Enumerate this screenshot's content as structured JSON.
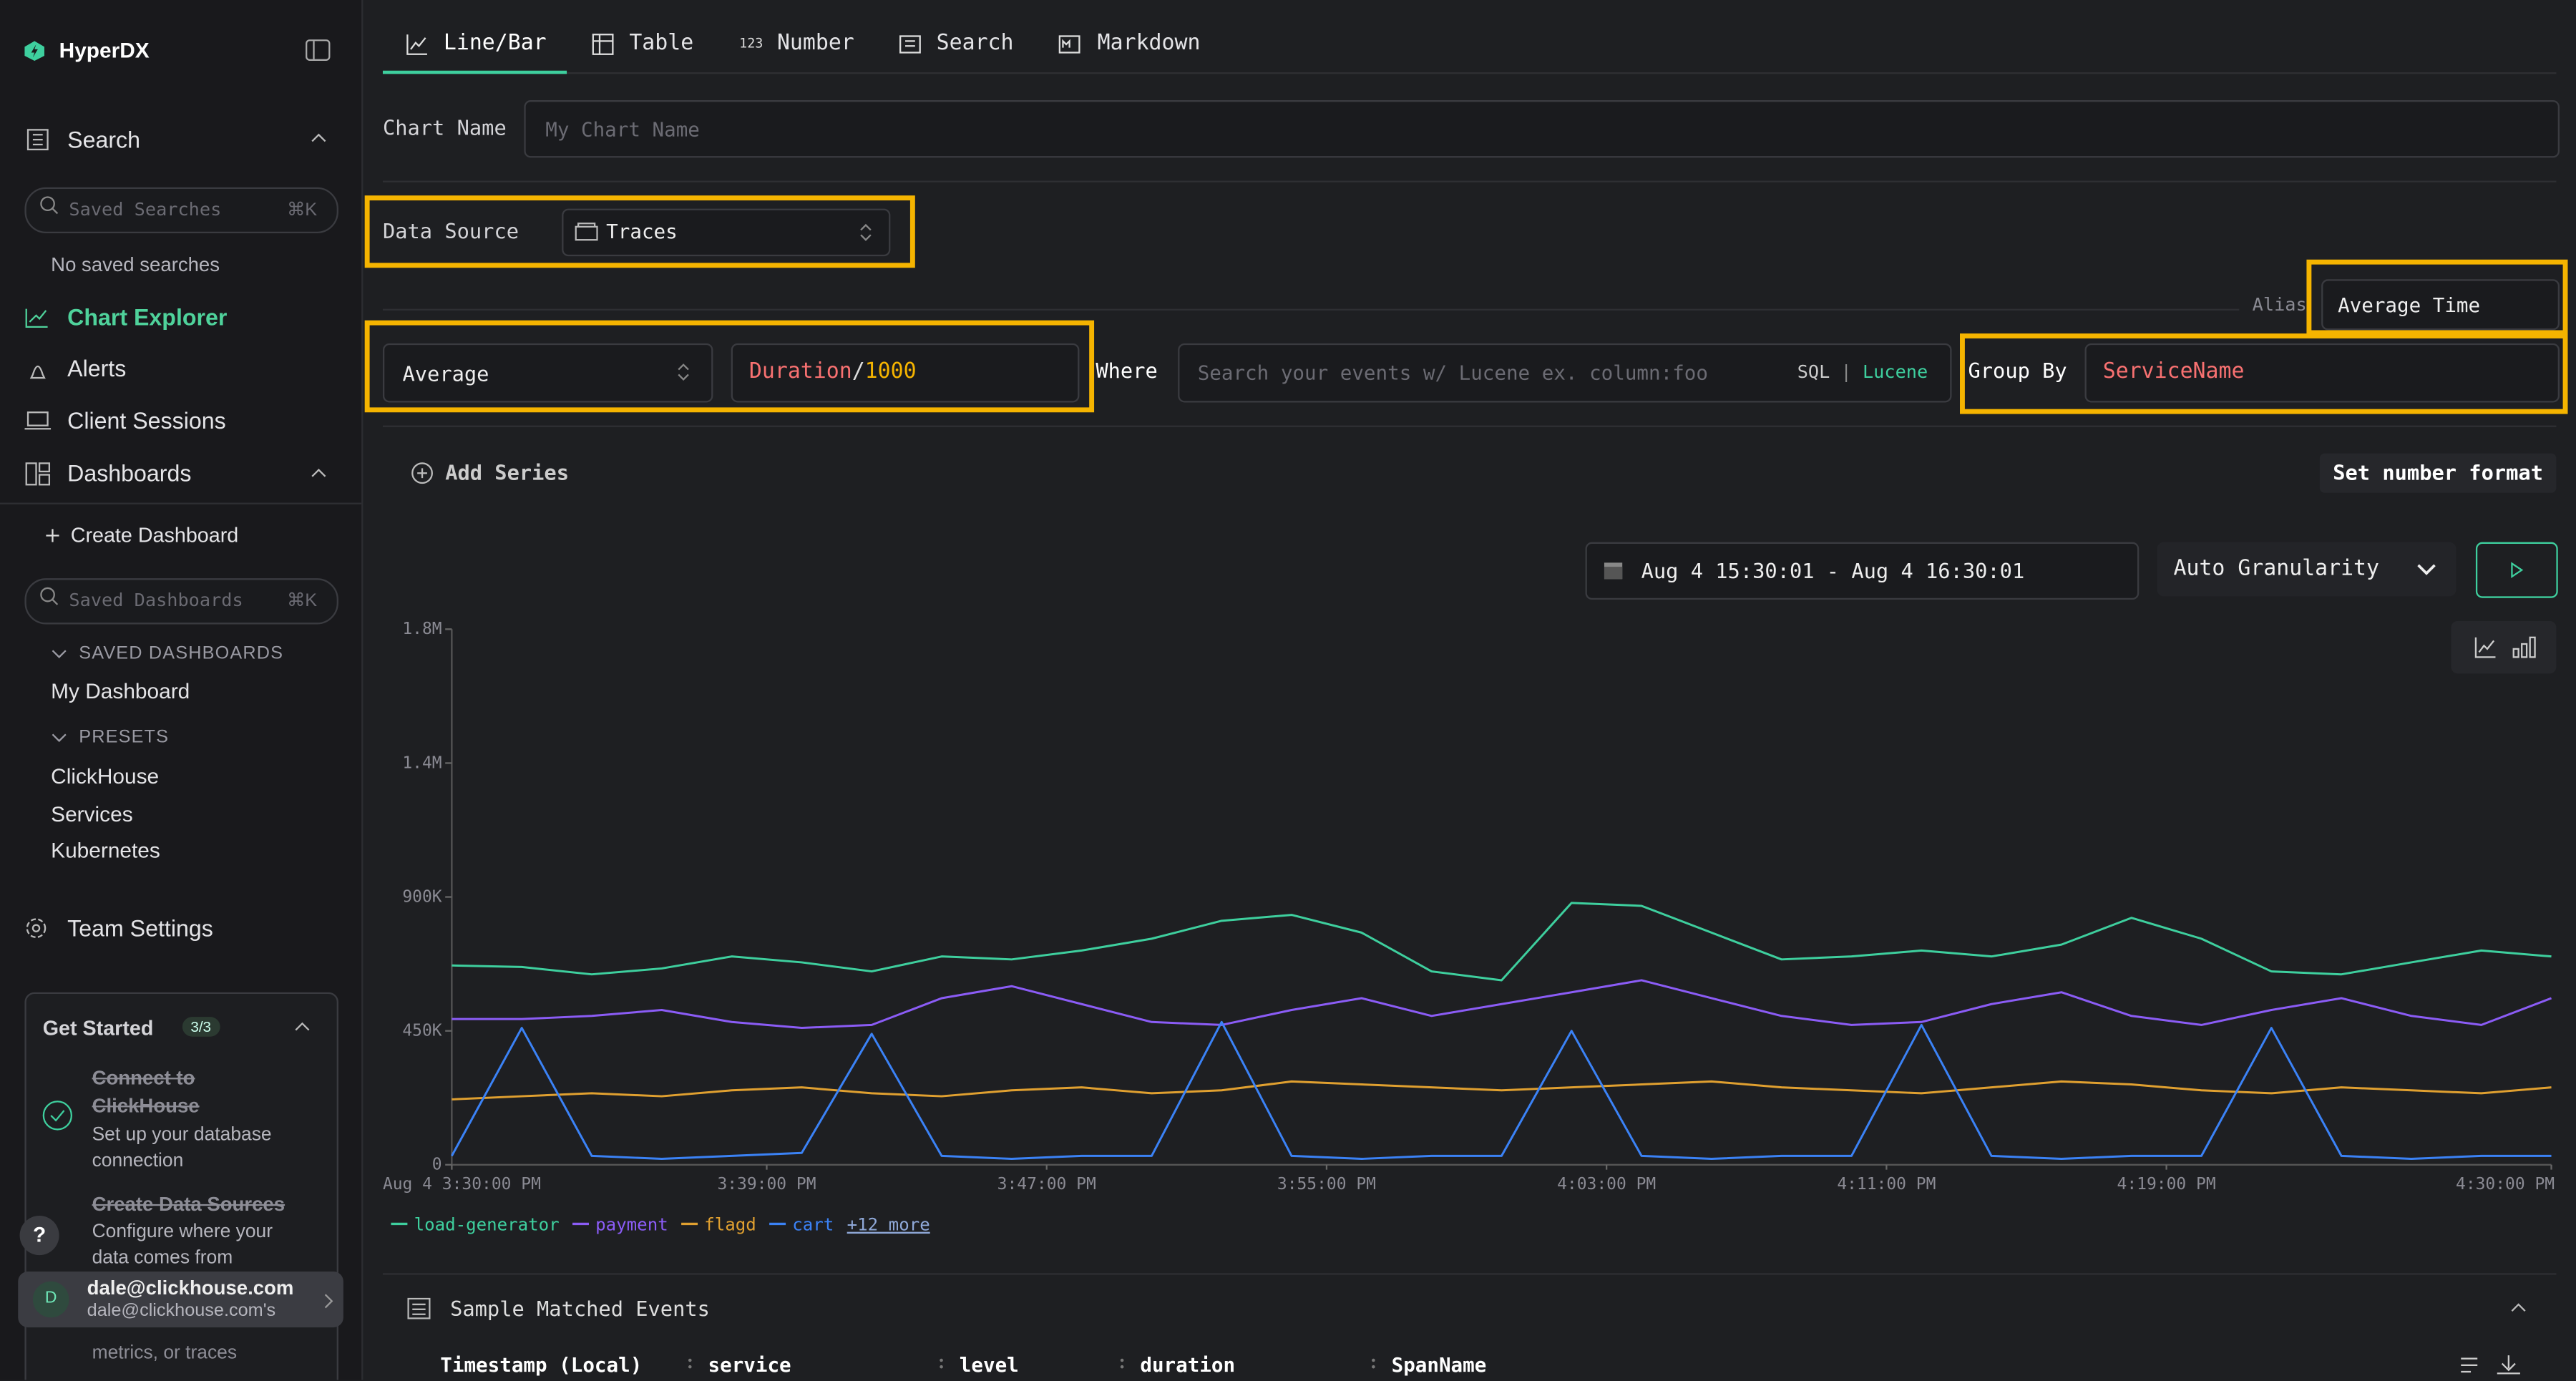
{
  "brand": "HyperDX",
  "sidebar": {
    "search": "Search",
    "saved_searches_placeholder": "Saved Searches",
    "search_shortcut": "⌘K",
    "no_saved": "No saved searches",
    "nav": [
      "Chart Explorer",
      "Alerts",
      "Client Sessions",
      "Dashboards"
    ],
    "create_dashboard": "Create Dashboard",
    "saved_dashboards_placeholder": "Saved Dashboards",
    "dashboards_shortcut": "⌘K",
    "saved_dashboards_heading": "SAVED DASHBOARDS",
    "my_dashboard": "My Dashboard",
    "presets_heading": "PRESETS",
    "presets": [
      "ClickHouse",
      "Services",
      "Kubernetes"
    ],
    "team_settings": "Team Settings",
    "get_started": {
      "title": "Get Started",
      "progress": "3/3",
      "steps": [
        {
          "title": "Connect to ClickHouse",
          "desc": "Set up your database connection"
        },
        {
          "title": "Create Data Sources",
          "desc": "Configure where your data comes from"
        },
        {
          "desc": "metrics, or traces"
        }
      ]
    },
    "help": "?",
    "user": {
      "initial": "D",
      "email": "dale@clickhouse.com",
      "org": "dale@clickhouse.com's"
    }
  },
  "tabs": [
    "Line/Bar",
    "Table",
    "Number",
    "Search",
    "Markdown"
  ],
  "number_icon": "123",
  "form": {
    "chart_name_label": "Chart Name",
    "chart_name_placeholder": "My Chart Name",
    "data_source_label": "Data Source",
    "data_source": "Traces",
    "alias_label": "Alias",
    "alias": "Average Time",
    "aggregation": "Average",
    "expression": [
      "Duration",
      "/",
      "1000"
    ],
    "where_label": "Where",
    "where_placeholder": "Search your events w/ Lucene ex. column:foo",
    "sql": "SQL",
    "separator": "|",
    "lucene": "Lucene",
    "group_by_label": "Group By",
    "group_by": "ServiceName",
    "add_series": "Add Series",
    "set_number_format": "Set number format",
    "date_range": "Aug 4 15:30:01 - Aug 4 16:30:01",
    "granularity": "Auto Granularity"
  },
  "chart_data": {
    "type": "line",
    "x": [
      "15:30:00",
      "15:32:00",
      "15:34:00",
      "15:36:00",
      "15:38:00",
      "15:40:00",
      "15:42:00",
      "15:44:00",
      "15:46:00",
      "15:48:00",
      "15:50:00",
      "15:52:00",
      "15:54:00",
      "15:56:00",
      "15:58:00",
      "16:00:00",
      "16:02:00",
      "16:04:00",
      "16:06:00",
      "16:08:00",
      "16:10:00",
      "16:12:00",
      "16:14:00",
      "16:16:00",
      "16:18:00",
      "16:20:00",
      "16:22:00",
      "16:24:00",
      "16:26:00",
      "16:28:00",
      "16:30:00"
    ],
    "xlim": [
      "15:30:00",
      "16:30:00"
    ],
    "xticks": [
      {
        "value": "15:30:00",
        "label": "Aug 4 3:30:00 PM"
      },
      {
        "value": "15:39:00",
        "label": "3:39:00 PM"
      },
      {
        "value": "15:47:00",
        "label": "3:47:00 PM"
      },
      {
        "value": "15:55:00",
        "label": "3:55:00 PM"
      },
      {
        "value": "16:03:00",
        "label": "4:03:00 PM"
      },
      {
        "value": "16:11:00",
        "label": "4:11:00 PM"
      },
      {
        "value": "16:19:00",
        "label": "4:19:00 PM"
      },
      {
        "value": "16:30:00",
        "label": "4:30:00 PM"
      }
    ],
    "ylim": [
      0,
      1800000
    ],
    "yticks": [
      0,
      {
        "value": 450000,
        "label": "450K"
      },
      {
        "value": 900000,
        "label": "900K"
      },
      {
        "value": 1350000,
        "label": "1.4M"
      },
      {
        "value": 1800000,
        "label": "1.8M"
      }
    ],
    "series": [
      {
        "name": "load-generator",
        "color": "#3ecf9e",
        "values": [
          670000,
          665000,
          640000,
          660000,
          700000,
          680000,
          650000,
          700000,
          690000,
          720000,
          760000,
          820000,
          840000,
          780000,
          650000,
          620000,
          880000,
          870000,
          780000,
          690000,
          700000,
          720000,
          700000,
          740000,
          830000,
          760000,
          650000,
          640000,
          680000,
          720000,
          700000
        ]
      },
      {
        "name": "payment",
        "color": "#8b5cf6",
        "values": [
          490000,
          490000,
          500000,
          520000,
          480000,
          460000,
          470000,
          560000,
          600000,
          540000,
          480000,
          470000,
          520000,
          560000,
          500000,
          540000,
          580000,
          620000,
          560000,
          500000,
          470000,
          480000,
          540000,
          580000,
          500000,
          470000,
          520000,
          560000,
          500000,
          470000,
          560000
        ]
      },
      {
        "name": "flagd",
        "color": "#e0a030",
        "values": [
          220000,
          230000,
          240000,
          230000,
          250000,
          260000,
          240000,
          230000,
          250000,
          260000,
          240000,
          250000,
          280000,
          270000,
          260000,
          250000,
          260000,
          270000,
          280000,
          260000,
          250000,
          240000,
          260000,
          280000,
          270000,
          250000,
          240000,
          260000,
          250000,
          240000,
          260000
        ]
      },
      {
        "name": "cart",
        "color": "#3b82f6",
        "values": [
          30000,
          460000,
          30000,
          20000,
          30000,
          40000,
          440000,
          30000,
          20000,
          30000,
          30000,
          480000,
          30000,
          20000,
          30000,
          30000,
          450000,
          30000,
          20000,
          30000,
          30000,
          470000,
          30000,
          20000,
          30000,
          30000,
          460000,
          30000,
          20000,
          30000,
          30000
        ]
      }
    ],
    "more_label": "+12 more",
    "grid": false
  },
  "events": {
    "title": "Sample Matched Events",
    "columns": [
      "Timestamp (Local)",
      "service",
      "level",
      "duration",
      "SpanName"
    ]
  }
}
